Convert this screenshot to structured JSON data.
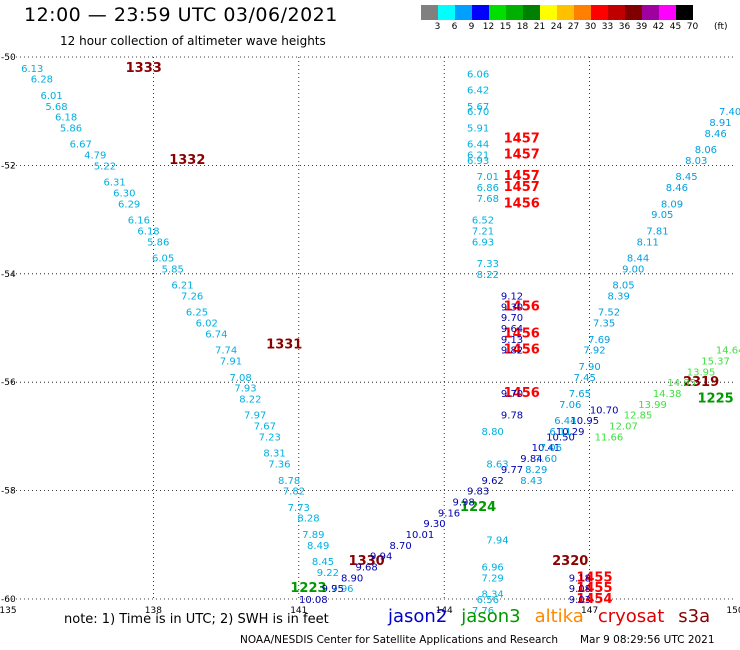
{
  "header": {
    "title": "12:00 — 23:59 UTC 03/06/2021",
    "subtitle": "12 hour collection of altimeter wave heights"
  },
  "legend": {
    "colors": [
      "#808080",
      "#00ffff",
      "#00a0ff",
      "#0000ff",
      "#00e000",
      "#00b000",
      "#008000",
      "#ffff00",
      "#ffc000",
      "#ff8000",
      "#ff0000",
      "#c00000",
      "#800000",
      "#a000a0",
      "#ff00ff",
      "#000000"
    ],
    "ticks": [
      "3",
      "6",
      "9",
      "12",
      "15",
      "18",
      "21",
      "24",
      "27",
      "30",
      "33",
      "36",
      "39",
      "42",
      "45",
      "70"
    ],
    "unit": "(ft)"
  },
  "note": "note:  1) Time is in UTC; 2) SWH is in feet",
  "satellites": [
    {
      "name": "jason2",
      "color": "#0000cc"
    },
    {
      "name": "jason3",
      "color": "#009900"
    },
    {
      "name": "altika",
      "color": "#ff8800"
    },
    {
      "name": "cryosat",
      "color": "#dd0000"
    },
    {
      "name": "s3a",
      "color": "#880000"
    }
  ],
  "footer": {
    "credit": "NOAA/NESDIS Center for Satellite Applications and Research",
    "timestamp": "Mar  9 08:29:56 UTC 2021"
  },
  "chart_data": {
    "type": "scatter",
    "x_axis": {
      "range": [
        135,
        150
      ],
      "ticks": [
        "135",
        "138",
        "141",
        "144",
        "147",
        "150"
      ]
    },
    "y_axis": {
      "range": [
        -60,
        -50
      ],
      "ticks": [
        "-50",
        "-52",
        "-54",
        "-56",
        "-58",
        "-60"
      ]
    },
    "grid": true,
    "series": [
      {
        "name": "s3a",
        "color": "#8b0000",
        "points": [
          {
            "x": 137.8,
            "y": -50.2,
            "label": "1333"
          },
          {
            "x": 138.7,
            "y": -51.9,
            "label": "1332"
          },
          {
            "x": 140.7,
            "y": -55.3,
            "label": "1331"
          },
          {
            "x": 142.4,
            "y": -59.3,
            "label": "1330"
          },
          {
            "x": 149.3,
            "y": -56.0,
            "label": "2319"
          },
          {
            "x": 146.6,
            "y": -59.3,
            "label": "2320"
          }
        ]
      },
      {
        "name": "cryosat",
        "color": "#ff0000",
        "points": [
          {
            "x": 145.6,
            "y": -51.5,
            "label": "1457"
          },
          {
            "x": 145.6,
            "y": -51.8,
            "label": "1457"
          },
          {
            "x": 145.6,
            "y": -52.2,
            "label": "1457"
          },
          {
            "x": 145.6,
            "y": -52.4,
            "label": "1457"
          },
          {
            "x": 145.6,
            "y": -52.7,
            "label": "1456"
          },
          {
            "x": 145.6,
            "y": -54.6,
            "label": "1456"
          },
          {
            "x": 145.6,
            "y": -55.1,
            "label": "1456"
          },
          {
            "x": 145.6,
            "y": -55.4,
            "label": "1456"
          },
          {
            "x": 145.6,
            "y": -56.2,
            "label": "1456"
          },
          {
            "x": 147.1,
            "y": -59.6,
            "label": "1455"
          },
          {
            "x": 147.1,
            "y": -59.8,
            "label": "1455"
          },
          {
            "x": 147.1,
            "y": -60.0,
            "label": "1454"
          }
        ]
      },
      {
        "name": "jason3",
        "color": "#009900",
        "points": [
          {
            "x": 141.2,
            "y": -59.8,
            "label": "1223"
          },
          {
            "x": 144.7,
            "y": -58.3,
            "label": "1224"
          },
          {
            "x": 149.6,
            "y": -56.3,
            "label": "1225"
          }
        ]
      },
      {
        "name": "swh_track_1_west",
        "color": "#00b0e0",
        "points": [
          {
            "x": 135.5,
            "y": -50.2,
            "label": "6.13"
          },
          {
            "x": 135.7,
            "y": -50.4,
            "label": "6.28"
          },
          {
            "x": 135.9,
            "y": -50.7,
            "label": "6.01"
          },
          {
            "x": 136.0,
            "y": -50.9,
            "label": "5.68"
          },
          {
            "x": 136.2,
            "y": -51.1,
            "label": "6.18"
          },
          {
            "x": 136.3,
            "y": -51.3,
            "label": "5.86"
          },
          {
            "x": 136.5,
            "y": -51.6,
            "label": "6.67"
          },
          {
            "x": 136.8,
            "y": -51.8,
            "label": "4.79"
          },
          {
            "x": 137.0,
            "y": -52.0,
            "label": "5.22"
          },
          {
            "x": 137.2,
            "y": -52.3,
            "label": "6.31"
          },
          {
            "x": 137.4,
            "y": -52.5,
            "label": "6.30"
          },
          {
            "x": 137.5,
            "y": -52.7,
            "label": "6.29"
          },
          {
            "x": 137.7,
            "y": -53.0,
            "label": "6.16"
          },
          {
            "x": 137.9,
            "y": -53.2,
            "label": "6.18"
          },
          {
            "x": 138.1,
            "y": -53.4,
            "label": "5.86"
          },
          {
            "x": 138.2,
            "y": -53.7,
            "label": "6.05"
          },
          {
            "x": 138.4,
            "y": -53.9,
            "label": "5.85"
          },
          {
            "x": 138.6,
            "y": -54.2,
            "label": "6.21"
          },
          {
            "x": 138.8,
            "y": -54.4,
            "label": "7.26"
          },
          {
            "x": 138.9,
            "y": -54.7,
            "label": "6.25"
          },
          {
            "x": 139.1,
            "y": -54.9,
            "label": "6.02"
          },
          {
            "x": 139.3,
            "y": -55.1,
            "label": "6.74"
          },
          {
            "x": 139.5,
            "y": -55.4,
            "label": "7.74"
          },
          {
            "x": 139.6,
            "y": -55.6,
            "label": "7.91"
          },
          {
            "x": 139.8,
            "y": -55.9,
            "label": "7.08"
          },
          {
            "x": 139.9,
            "y": -56.1,
            "label": "7.93"
          },
          {
            "x": 140.0,
            "y": -56.3,
            "label": "8.22"
          },
          {
            "x": 140.1,
            "y": -56.6,
            "label": "7.97"
          },
          {
            "x": 140.3,
            "y": -56.8,
            "label": "7.67"
          },
          {
            "x": 140.4,
            "y": -57.0,
            "label": "7.23"
          },
          {
            "x": 140.5,
            "y": -57.3,
            "label": "8.31"
          },
          {
            "x": 140.6,
            "y": -57.5,
            "label": "7.36"
          },
          {
            "x": 140.8,
            "y": -57.8,
            "label": "8.78"
          },
          {
            "x": 140.9,
            "y": -58.0,
            "label": "7.82"
          },
          {
            "x": 141.0,
            "y": -58.3,
            "label": "7.73"
          },
          {
            "x": 141.2,
            "y": -58.5,
            "label": "8.28"
          },
          {
            "x": 141.3,
            "y": -58.8,
            "label": "7.89"
          },
          {
            "x": 141.4,
            "y": -59.0,
            "label": "8.49"
          },
          {
            "x": 141.5,
            "y": -59.3,
            "label": "8.45"
          },
          {
            "x": 141.6,
            "y": -59.5,
            "label": "9.22"
          },
          {
            "x": 141.9,
            "y": -59.8,
            "label": "7.96"
          }
        ]
      },
      {
        "name": "swh_track_2_central",
        "color": "#00b0e0",
        "points": [
          {
            "x": 144.7,
            "y": -50.3,
            "label": "6.06"
          },
          {
            "x": 144.7,
            "y": -50.6,
            "label": "6.42"
          },
          {
            "x": 144.7,
            "y": -50.9,
            "label": "5.67"
          },
          {
            "x": 144.7,
            "y": -51.0,
            "label": "6.70"
          },
          {
            "x": 144.7,
            "y": -51.3,
            "label": "5.91"
          },
          {
            "x": 144.7,
            "y": -51.6,
            "label": "6.44"
          },
          {
            "x": 144.7,
            "y": -51.8,
            "label": "6.21"
          },
          {
            "x": 144.7,
            "y": -51.9,
            "label": "6.93"
          },
          {
            "x": 144.9,
            "y": -52.2,
            "label": "7.01"
          },
          {
            "x": 144.9,
            "y": -52.4,
            "label": "6.86"
          },
          {
            "x": 144.9,
            "y": -52.6,
            "label": "7.68"
          },
          {
            "x": 144.8,
            "y": -53.0,
            "label": "6.52"
          },
          {
            "x": 144.8,
            "y": -53.2,
            "label": "7.21"
          },
          {
            "x": 144.8,
            "y": -53.4,
            "label": "6.93"
          },
          {
            "x": 144.9,
            "y": -53.8,
            "label": "7.33"
          },
          {
            "x": 144.9,
            "y": -54.0,
            "label": "8.22"
          },
          {
            "x": 145.0,
            "y": -56.9,
            "label": "8.80"
          },
          {
            "x": 145.1,
            "y": -57.5,
            "label": "8.63"
          },
          {
            "x": 145.1,
            "y": -58.9,
            "label": "7.94"
          },
          {
            "x": 145.0,
            "y": -59.4,
            "label": "6.96"
          },
          {
            "x": 145.0,
            "y": -59.6,
            "label": "7.29"
          },
          {
            "x": 145.0,
            "y": -59.9,
            "label": "8.34"
          },
          {
            "x": 144.9,
            "y": -60.0,
            "label": "6.56"
          },
          {
            "x": 144.8,
            "y": -60.2,
            "label": "7.76"
          }
        ]
      },
      {
        "name": "swh_track_3_jason2",
        "color": "#0000b0",
        "points": [
          {
            "x": 145.4,
            "y": -54.4,
            "label": "9.12"
          },
          {
            "x": 145.4,
            "y": -54.6,
            "label": "9.30"
          },
          {
            "x": 145.4,
            "y": -54.8,
            "label": "9.70"
          },
          {
            "x": 145.4,
            "y": -55.0,
            "label": "9.64"
          },
          {
            "x": 145.4,
            "y": -55.2,
            "label": "9.13"
          },
          {
            "x": 145.4,
            "y": -55.4,
            "label": "9.82"
          },
          {
            "x": 145.4,
            "y": -56.2,
            "label": "9.70"
          },
          {
            "x": 145.4,
            "y": -56.6,
            "label": "9.78"
          },
          {
            "x": 141.3,
            "y": -60.0,
            "label": "10.08"
          },
          {
            "x": 141.7,
            "y": -59.8,
            "label": "9.95"
          },
          {
            "x": 142.1,
            "y": -59.6,
            "label": "8.90"
          },
          {
            "x": 142.4,
            "y": -59.4,
            "label": "9.68"
          },
          {
            "x": 142.7,
            "y": -59.2,
            "label": "9.94"
          },
          {
            "x": 143.1,
            "y": -59.0,
            "label": "8.70"
          },
          {
            "x": 143.5,
            "y": -58.8,
            "label": "10.01"
          },
          {
            "x": 143.8,
            "y": -58.6,
            "label": "9.30"
          },
          {
            "x": 144.1,
            "y": -58.4,
            "label": "9.16"
          },
          {
            "x": 144.4,
            "y": -58.2,
            "label": "9.98"
          },
          {
            "x": 144.7,
            "y": -58.0,
            "label": "9.83"
          },
          {
            "x": 145.0,
            "y": -57.8,
            "label": "9.62"
          },
          {
            "x": 145.4,
            "y": -57.6,
            "label": "9.77"
          },
          {
            "x": 145.8,
            "y": -57.4,
            "label": "9.84"
          },
          {
            "x": 146.1,
            "y": -57.2,
            "label": "10.41"
          },
          {
            "x": 146.4,
            "y": -57.0,
            "label": "10.50"
          },
          {
            "x": 146.6,
            "y": -56.9,
            "label": "10.29"
          },
          {
            "x": 146.9,
            "y": -56.7,
            "label": "10.95"
          },
          {
            "x": 147.3,
            "y": -56.5,
            "label": "10.70"
          },
          {
            "x": 146.8,
            "y": -59.6,
            "label": "9.18"
          },
          {
            "x": 146.8,
            "y": -59.8,
            "label": "9.08"
          },
          {
            "x": 146.8,
            "y": -60.0,
            "label": "9.03"
          }
        ]
      },
      {
        "name": "swh_track_4_east",
        "color": "#00a0e0",
        "points": [
          {
            "x": 149.9,
            "y": -51.0,
            "label": "7.40"
          },
          {
            "x": 149.7,
            "y": -51.2,
            "label": "8.91"
          },
          {
            "x": 149.6,
            "y": -51.4,
            "label": "8.46"
          },
          {
            "x": 149.4,
            "y": -51.7,
            "label": "8.06"
          },
          {
            "x": 149.2,
            "y": -51.9,
            "label": "8.03"
          },
          {
            "x": 149.0,
            "y": -52.2,
            "label": "8.45"
          },
          {
            "x": 148.8,
            "y": -52.4,
            "label": "8.46"
          },
          {
            "x": 148.7,
            "y": -52.7,
            "label": "8.09"
          },
          {
            "x": 148.5,
            "y": -52.9,
            "label": "9.05"
          },
          {
            "x": 148.4,
            "y": -53.2,
            "label": "7.81"
          },
          {
            "x": 148.2,
            "y": -53.4,
            "label": "8.11"
          },
          {
            "x": 148.0,
            "y": -53.7,
            "label": "8.44"
          },
          {
            "x": 147.9,
            "y": -53.9,
            "label": "9.00"
          },
          {
            "x": 147.7,
            "y": -54.2,
            "label": "8.05"
          },
          {
            "x": 147.6,
            "y": -54.4,
            "label": "8.39"
          },
          {
            "x": 147.4,
            "y": -54.7,
            "label": "7.52"
          },
          {
            "x": 147.3,
            "y": -54.9,
            "label": "7.35"
          },
          {
            "x": 147.2,
            "y": -55.2,
            "label": "7.69"
          },
          {
            "x": 147.1,
            "y": -55.4,
            "label": "7.92"
          },
          {
            "x": 147.0,
            "y": -55.7,
            "label": "7.90"
          },
          {
            "x": 146.9,
            "y": -55.9,
            "label": "7.45"
          },
          {
            "x": 146.8,
            "y": -56.2,
            "label": "7.65"
          },
          {
            "x": 146.6,
            "y": -56.4,
            "label": "7.06"
          },
          {
            "x": 146.5,
            "y": -56.7,
            "label": "6.44"
          },
          {
            "x": 146.4,
            "y": -56.9,
            "label": "6.11"
          },
          {
            "x": 146.2,
            "y": -57.2,
            "label": "7.06"
          },
          {
            "x": 146.1,
            "y": -57.4,
            "label": "7.60"
          },
          {
            "x": 145.9,
            "y": -57.6,
            "label": "8.29"
          },
          {
            "x": 145.8,
            "y": -57.8,
            "label": "8.43"
          }
        ]
      },
      {
        "name": "swh_track_5_jason3",
        "color": "#40e040",
        "points": [
          {
            "x": 149.9,
            "y": -55.4,
            "label": "14.64"
          },
          {
            "x": 149.6,
            "y": -55.6,
            "label": "15.37"
          },
          {
            "x": 149.3,
            "y": -55.8,
            "label": "13.95"
          },
          {
            "x": 148.9,
            "y": -56.0,
            "label": "14.85"
          },
          {
            "x": 148.6,
            "y": -56.2,
            "label": "14.38"
          },
          {
            "x": 148.3,
            "y": -56.4,
            "label": "13.99"
          },
          {
            "x": 148.0,
            "y": -56.6,
            "label": "12.85"
          },
          {
            "x": 147.7,
            "y": -56.8,
            "label": "12.07"
          },
          {
            "x": 147.4,
            "y": -57.0,
            "label": "11.66"
          }
        ]
      }
    ]
  }
}
